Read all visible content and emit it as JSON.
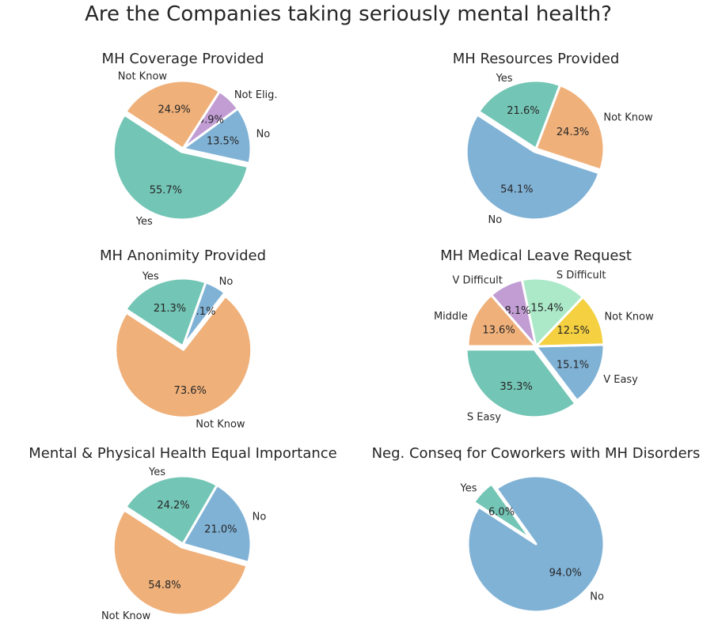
{
  "figure_title": "Are the Companies taking seriously mental health?",
  "chart_data": [
    {
      "type": "pie",
      "title": "MH Coverage Provided",
      "slices": [
        {
          "label": "Yes",
          "value": 55.7,
          "pct_text": "55.7%",
          "color": "#73c5b5"
        },
        {
          "label": "No",
          "value": 13.5,
          "pct_text": "13.5%",
          "color": "#80b2d6"
        },
        {
          "label": "Not Elig.",
          "value": 5.9,
          "pct_text": "5.9%",
          "color": "#c19dd4"
        },
        {
          "label": "Not Know",
          "value": 24.9,
          "pct_text": "24.9%",
          "color": "#efb07a"
        }
      ]
    },
    {
      "type": "pie",
      "title": "MH Resources Provided",
      "slices": [
        {
          "label": "No",
          "value": 54.1,
          "pct_text": "54.1%",
          "color": "#80b2d6"
        },
        {
          "label": "Not Know",
          "value": 24.3,
          "pct_text": "24.3%",
          "color": "#efb07a"
        },
        {
          "label": "Yes",
          "value": 21.6,
          "pct_text": "21.6%",
          "color": "#73c5b5"
        }
      ]
    },
    {
      "type": "pie",
      "title": "MH Anonimity Provided",
      "slices": [
        {
          "label": "Not Know",
          "value": 73.6,
          "pct_text": "73.6%",
          "color": "#efb07a"
        },
        {
          "label": "No",
          "value": 5.1,
          "pct_text": "5.1%",
          "color": "#80b2d6"
        },
        {
          "label": "Yes",
          "value": 21.3,
          "pct_text": "21.3%",
          "color": "#73c5b5"
        }
      ]
    },
    {
      "type": "pie",
      "title": "MH Medical Leave Request",
      "slices": [
        {
          "label": "S Easy",
          "value": 35.3,
          "pct_text": "35.3%",
          "color": "#73c5b5"
        },
        {
          "label": "V Easy",
          "value": 15.1,
          "pct_text": "15.1%",
          "color": "#80b2d6"
        },
        {
          "label": "Not Know",
          "value": 12.5,
          "pct_text": "12.5%",
          "color": "#f5d040"
        },
        {
          "label": "S Difficult",
          "value": 15.4,
          "pct_text": "15.4%",
          "color": "#abe9c8"
        },
        {
          "label": "V Difficult",
          "value": 8.1,
          "pct_text": "8.1%",
          "color": "#c19dd4"
        },
        {
          "label": "Middle",
          "value": 13.6,
          "pct_text": "13.6%",
          "color": "#efb07a"
        }
      ]
    },
    {
      "type": "pie",
      "title": "Mental & Physical Health Equal Importance",
      "slices": [
        {
          "label": "Not Know",
          "value": 54.8,
          "pct_text": "54.8%",
          "color": "#efb07a"
        },
        {
          "label": "No",
          "value": 21.0,
          "pct_text": "21.0%",
          "color": "#80b2d6"
        },
        {
          "label": "Yes",
          "value": 24.2,
          "pct_text": "24.2%",
          "color": "#73c5b5"
        }
      ]
    },
    {
      "type": "pie",
      "title": "Neg. Conseq for Coworkers with MH Disorders",
      "slices": [
        {
          "label": "No",
          "value": 94.0,
          "pct_text": "94.0%",
          "color": "#80b2d6"
        },
        {
          "label": "Yes",
          "value": 6.0,
          "pct_text": "6.0%",
          "color": "#73c5b5"
        }
      ]
    }
  ]
}
